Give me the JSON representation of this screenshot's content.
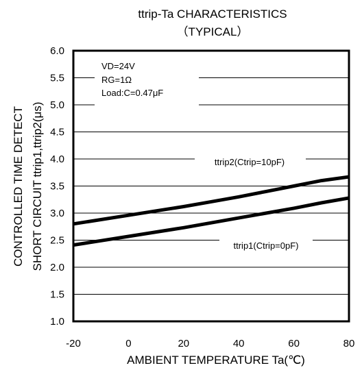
{
  "chart_data": {
    "type": "line",
    "title": "ttrip-Ta CHARACTERISTICS",
    "subtitle": "（TYPICAL）",
    "xlabel": "AMBIENT TEMPERATURE Ta(℃)",
    "ylabel_lines": [
      "CONTROLLED TIME DETECT",
      "SHORT CIRCUIT ttrip1,ttrip2(μs)"
    ],
    "xlim": [
      -20,
      80
    ],
    "ylim": [
      1.0,
      6.0
    ],
    "x_ticks": [
      "-20",
      "0",
      "20",
      "40",
      "60",
      "80"
    ],
    "y_ticks": [
      "1.0",
      "1.5",
      "2.0",
      "2.5",
      "3.0",
      "3.5",
      "4.0",
      "4.5",
      "5.0",
      "5.5",
      "6.0"
    ],
    "grid": "horizontal",
    "conditions": [
      "VD=24V",
      "RG=1Ω",
      "Load:C=0.47μF"
    ],
    "series": [
      {
        "name": "ttrip2(Ctrip=10pF)",
        "x": [
          -20,
          -10,
          0,
          10,
          20,
          30,
          40,
          50,
          60,
          70,
          80
        ],
        "y": [
          2.8,
          2.88,
          2.96,
          3.04,
          3.12,
          3.21,
          3.3,
          3.4,
          3.5,
          3.6,
          3.67
        ]
      },
      {
        "name": "ttrip1(Ctrip=0pF)",
        "x": [
          -20,
          -10,
          0,
          10,
          20,
          30,
          40,
          50,
          60,
          70,
          80
        ],
        "y": [
          2.41,
          2.49,
          2.57,
          2.65,
          2.73,
          2.82,
          2.91,
          3.0,
          3.09,
          3.19,
          3.28
        ]
      }
    ],
    "line_color": "#000000"
  }
}
